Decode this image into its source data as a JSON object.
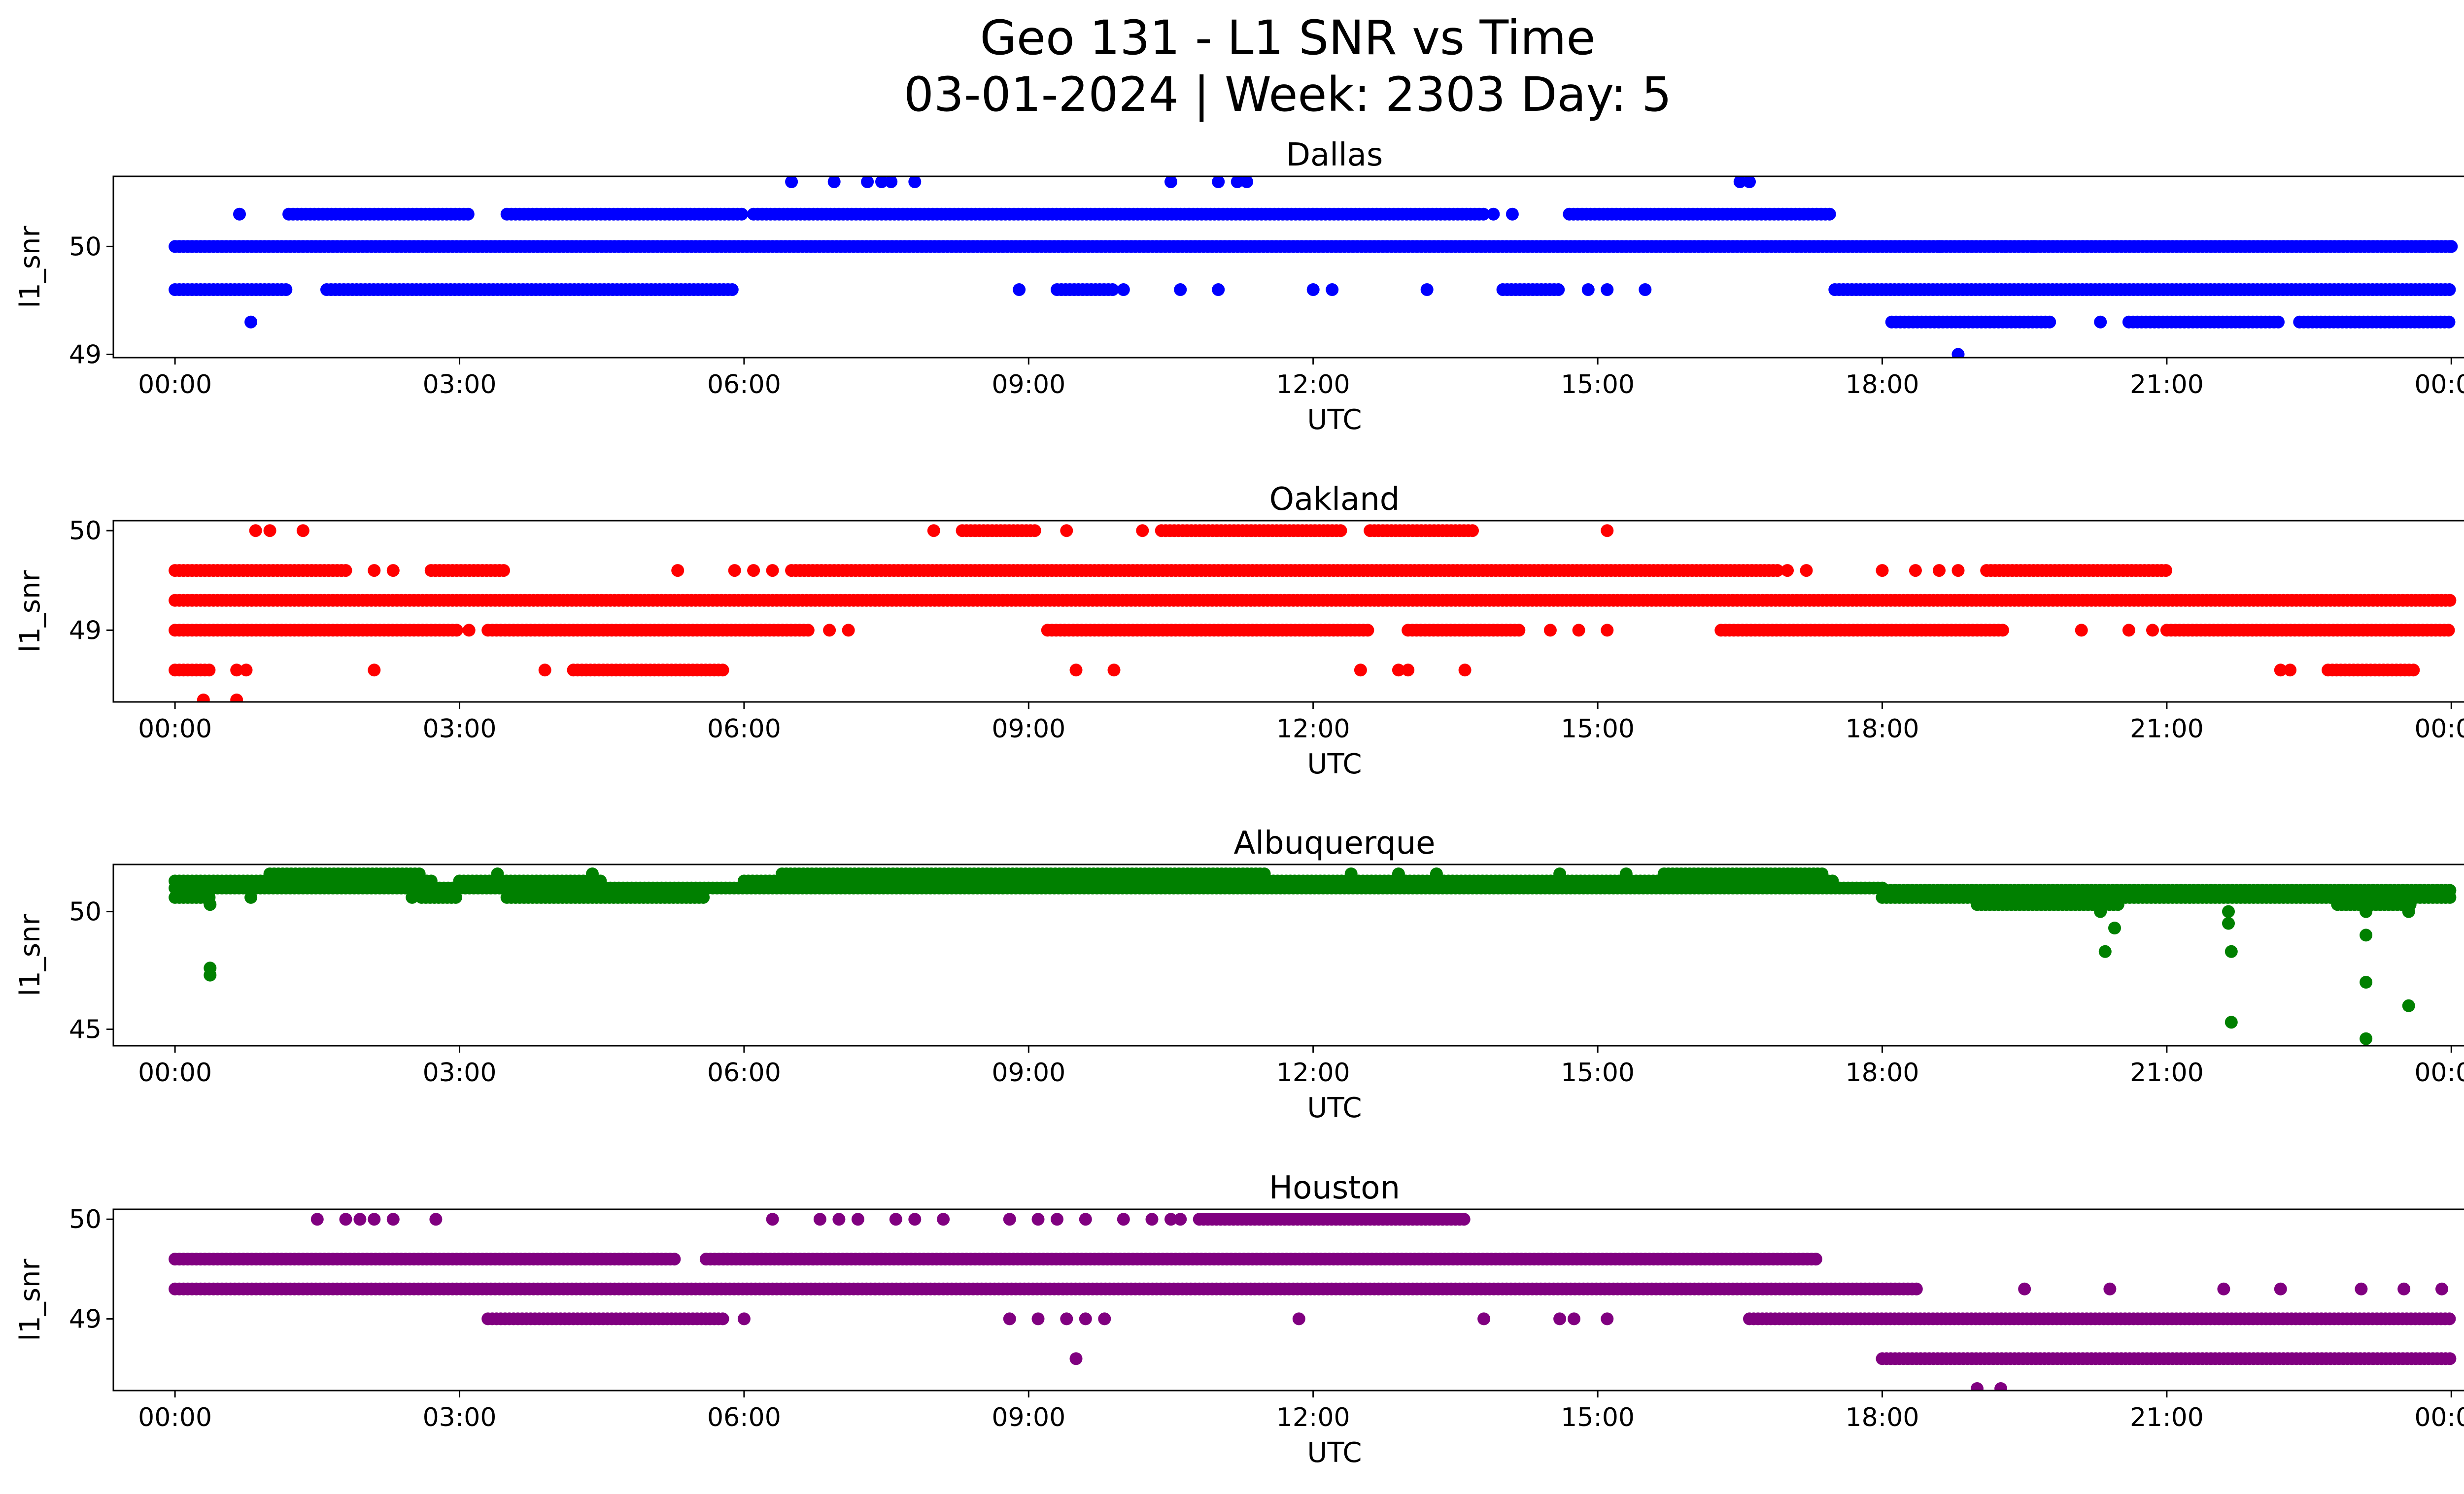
{
  "figure": {
    "title_line1": "Geo 131 - L1 SNR vs Time",
    "title_line2": "03-01-2024 | Week: 2303 Day: 5"
  },
  "chart_data": [
    {
      "type": "scatter",
      "title": "Dallas",
      "xlabel": "UTC",
      "ylabel": "l1_snr",
      "color": "#0000ff",
      "xticks": [
        "00:00",
        "03:00",
        "06:00",
        "09:00",
        "12:00",
        "15:00",
        "18:00",
        "21:00",
        "00:00"
      ],
      "xlim": [
        -0.65,
        25.1
      ],
      "yticks": [
        49,
        50
      ],
      "ylim": [
        48.97,
        50.65
      ],
      "levels": [
        {
          "y": 50.0,
          "runs": [
            [
              0.0,
              24.0
            ]
          ]
        },
        {
          "y": 50.3,
          "runs": [
            [
              1.2,
              3.1
            ],
            [
              3.5,
              6.0
            ],
            [
              6.1,
              13.8
            ],
            [
              14.7,
              17.45
            ]
          ]
        },
        {
          "y": 49.6,
          "runs": [
            [
              0.0,
              1.2
            ],
            [
              1.6,
              5.9
            ],
            [
              9.3,
              9.9
            ],
            [
              14.0,
              14.6
            ],
            [
              17.5,
              24.0
            ]
          ]
        },
        {
          "y": 49.3,
          "runs": [
            [
              18.1,
              19.8
            ],
            [
              20.6,
              22.2
            ],
            [
              22.4,
              24.0
            ]
          ]
        }
      ],
      "points": [
        [
          0.68,
          50.3
        ],
        [
          0.8,
          49.3
        ],
        [
          6.5,
          50.6
        ],
        [
          6.95,
          50.6
        ],
        [
          7.3,
          50.6
        ],
        [
          7.45,
          50.6
        ],
        [
          7.55,
          50.6
        ],
        [
          7.8,
          50.6
        ],
        [
          10.5,
          50.6
        ],
        [
          11.0,
          50.6
        ],
        [
          11.2,
          50.6
        ],
        [
          11.3,
          50.6
        ],
        [
          16.5,
          50.6
        ],
        [
          16.6,
          50.6
        ],
        [
          8.9,
          49.6
        ],
        [
          10.0,
          49.6
        ],
        [
          10.6,
          49.6
        ],
        [
          11.0,
          49.6
        ],
        [
          12.0,
          49.6
        ],
        [
          12.2,
          49.6
        ],
        [
          13.2,
          49.6
        ],
        [
          14.9,
          49.6
        ],
        [
          15.1,
          49.6
        ],
        [
          15.5,
          49.6
        ],
        [
          13.9,
          50.3
        ],
        [
          14.1,
          50.3
        ],
        [
          18.8,
          49.0
        ],
        [
          18.6,
          50.0
        ],
        [
          18.9,
          50.0
        ],
        [
          19.3,
          50.0
        ],
        [
          19.6,
          50.0
        ],
        [
          20.3,
          49.3
        ],
        [
          23.7,
          50.0
        ],
        [
          24.0,
          50.0
        ]
      ]
    },
    {
      "type": "scatter",
      "title": "Oakland",
      "xlabel": "UTC",
      "ylabel": "l1_snr",
      "color": "#ff0000",
      "xticks": [
        "00:00",
        "03:00",
        "06:00",
        "09:00",
        "12:00",
        "15:00",
        "18:00",
        "21:00",
        "00:00"
      ],
      "xlim": [
        -0.65,
        25.1
      ],
      "yticks": [
        49,
        50
      ],
      "ylim": [
        48.28,
        50.1
      ],
      "levels": [
        {
          "y": 49.3,
          "runs": [
            [
              0.0,
              24.0
            ]
          ]
        },
        {
          "y": 49.0,
          "runs": [
            [
              0.0,
              3.0
            ],
            [
              3.3,
              6.7
            ],
            [
              9.2,
              12.6
            ],
            [
              13.0,
              14.2
            ],
            [
              16.3,
              19.3
            ],
            [
              21.0,
              24.0
            ]
          ]
        },
        {
          "y": 49.6,
          "runs": [
            [
              0.0,
              1.8
            ],
            [
              2.7,
              3.5
            ],
            [
              6.5,
              16.9
            ],
            [
              19.1,
              21.0
            ]
          ]
        },
        {
          "y": 48.6,
          "runs": [
            [
              0.0,
              0.4
            ],
            [
              4.2,
              5.8
            ],
            [
              22.7,
              23.6
            ]
          ]
        },
        {
          "y": 50.0,
          "runs": [
            [
              8.3,
              9.1
            ],
            [
              10.4,
              12.3
            ],
            [
              12.6,
              13.7
            ]
          ]
        }
      ],
      "points": [
        [
          0.85,
          50.0
        ],
        [
          1.0,
          50.0
        ],
        [
          1.35,
          50.0
        ],
        [
          8.0,
          50.0
        ],
        [
          9.4,
          50.0
        ],
        [
          10.2,
          50.0
        ],
        [
          15.1,
          50.0
        ],
        [
          0.3,
          48.3
        ],
        [
          0.65,
          48.3
        ],
        [
          0.65,
          48.6
        ],
        [
          0.75,
          48.6
        ],
        [
          2.1,
          48.6
        ],
        [
          3.9,
          48.6
        ],
        [
          9.5,
          48.6
        ],
        [
          9.9,
          48.6
        ],
        [
          12.5,
          48.6
        ],
        [
          12.9,
          48.6
        ],
        [
          13.0,
          48.6
        ],
        [
          13.6,
          48.6
        ],
        [
          22.2,
          48.6
        ],
        [
          22.3,
          48.6
        ],
        [
          3.1,
          49.0
        ],
        [
          6.9,
          49.0
        ],
        [
          7.1,
          49.0
        ],
        [
          14.5,
          49.0
        ],
        [
          14.8,
          49.0
        ],
        [
          15.1,
          49.0
        ],
        [
          20.1,
          49.0
        ],
        [
          20.6,
          49.0
        ],
        [
          20.85,
          49.0
        ],
        [
          2.1,
          49.6
        ],
        [
          2.3,
          49.6
        ],
        [
          5.3,
          49.6
        ],
        [
          5.9,
          49.6
        ],
        [
          6.1,
          49.6
        ],
        [
          6.3,
          49.6
        ],
        [
          17.0,
          49.6
        ],
        [
          17.2,
          49.6
        ],
        [
          18.0,
          49.6
        ],
        [
          18.35,
          49.6
        ],
        [
          18.6,
          49.6
        ],
        [
          18.8,
          49.6
        ]
      ]
    },
    {
      "type": "scatter",
      "title": "Albuquerque",
      "xlabel": "UTC",
      "ylabel": "l1_snr",
      "color": "#008000",
      "xticks": [
        "00:00",
        "03:00",
        "06:00",
        "09:00",
        "12:00",
        "15:00",
        "18:00",
        "21:00",
        "00:00"
      ],
      "xlim": [
        -0.65,
        25.1
      ],
      "yticks": [
        45,
        50
      ],
      "ylim": [
        44.3,
        52.0
      ],
      "levels": [
        {
          "y": 51.0,
          "runs": [
            [
              0.0,
              18.0
            ]
          ]
        },
        {
          "y": 51.3,
          "runs": [
            [
              0.0,
              2.7
            ],
            [
              3.0,
              4.5
            ],
            [
              6.0,
              17.5
            ]
          ]
        },
        {
          "y": 50.6,
          "runs": [
            [
              0.0,
              0.4
            ],
            [
              2.6,
              3.0
            ],
            [
              3.5,
              5.6
            ],
            [
              18.0,
              24.0
            ]
          ]
        },
        {
          "y": 51.6,
          "runs": [
            [
              1.0,
              2.6
            ],
            [
              6.4,
              11.5
            ],
            [
              15.7,
              17.4
            ]
          ]
        },
        {
          "y": 50.9,
          "runs": [
            [
              18.0,
              24.0
            ]
          ]
        },
        {
          "y": 50.3,
          "runs": [
            [
              19.0,
              20.5
            ],
            [
              22.8,
              23.6
            ]
          ]
        }
      ],
      "points": [
        [
          0.37,
          50.3
        ],
        [
          0.37,
          47.6
        ],
        [
          0.37,
          47.3
        ],
        [
          0.8,
          50.6
        ],
        [
          2.5,
          50.6
        ],
        [
          20.3,
          50.0
        ],
        [
          20.35,
          48.3
        ],
        [
          20.45,
          49.3
        ],
        [
          21.65,
          50.0
        ],
        [
          21.65,
          49.5
        ],
        [
          21.68,
          48.3
        ],
        [
          21.68,
          45.3
        ],
        [
          23.1,
          50.0
        ],
        [
          23.1,
          49.0
        ],
        [
          23.1,
          47.0
        ],
        [
          23.1,
          44.6
        ],
        [
          23.55,
          50.0
        ],
        [
          23.55,
          46.0
        ],
        [
          3.4,
          51.6
        ],
        [
          4.4,
          51.6
        ],
        [
          12.4,
          51.6
        ],
        [
          12.9,
          51.6
        ],
        [
          13.3,
          51.6
        ],
        [
          14.6,
          51.6
        ],
        [
          15.3,
          51.6
        ]
      ]
    },
    {
      "type": "scatter",
      "title": "Houston",
      "xlabel": "UTC",
      "ylabel": "l1_snr",
      "color": "#800080",
      "xticks": [
        "00:00",
        "03:00",
        "06:00",
        "09:00",
        "12:00",
        "15:00",
        "18:00",
        "21:00",
        "00:00"
      ],
      "xlim": [
        -0.65,
        25.1
      ],
      "yticks": [
        49,
        50
      ],
      "ylim": [
        48.28,
        50.1
      ],
      "levels": [
        {
          "y": 49.3,
          "runs": [
            [
              0.0,
              18.4
            ]
          ]
        },
        {
          "y": 49.6,
          "runs": [
            [
              0.0,
              5.3
            ],
            [
              5.6,
              17.3
            ]
          ]
        },
        {
          "y": 49.0,
          "runs": [
            [
              3.3,
              5.8
            ],
            [
              16.6,
              24.0
            ]
          ]
        },
        {
          "y": 48.6,
          "runs": [
            [
              18.0,
              24.0
            ]
          ]
        },
        {
          "y": 50.0,
          "runs": [
            [
              10.8,
              13.6
            ]
          ]
        }
      ],
      "points": [
        [
          1.5,
          50.0
        ],
        [
          1.8,
          50.0
        ],
        [
          1.95,
          50.0
        ],
        [
          2.1,
          50.0
        ],
        [
          2.3,
          50.0
        ],
        [
          2.75,
          50.0
        ],
        [
          6.3,
          50.0
        ],
        [
          6.8,
          50.0
        ],
        [
          7.0,
          50.0
        ],
        [
          7.2,
          50.0
        ],
        [
          7.6,
          50.0
        ],
        [
          7.8,
          50.0
        ],
        [
          8.1,
          50.0
        ],
        [
          8.8,
          50.0
        ],
        [
          9.1,
          50.0
        ],
        [
          9.3,
          50.0
        ],
        [
          9.6,
          50.0
        ],
        [
          10.0,
          50.0
        ],
        [
          10.3,
          50.0
        ],
        [
          10.5,
          50.0
        ],
        [
          10.6,
          50.0
        ],
        [
          8.8,
          49.0
        ],
        [
          9.1,
          49.0
        ],
        [
          9.4,
          49.0
        ],
        [
          9.6,
          49.0
        ],
        [
          9.8,
          49.0
        ],
        [
          11.85,
          49.0
        ],
        [
          13.8,
          49.0
        ],
        [
          14.6,
          49.0
        ],
        [
          14.75,
          49.0
        ],
        [
          15.1,
          49.0
        ],
        [
          6.0,
          49.0
        ],
        [
          9.5,
          48.6
        ],
        [
          19.0,
          48.3
        ],
        [
          19.25,
          48.3
        ],
        [
          19.5,
          49.3
        ],
        [
          20.4,
          49.3
        ],
        [
          21.6,
          49.3
        ],
        [
          22.2,
          49.3
        ],
        [
          23.05,
          49.3
        ],
        [
          23.5,
          49.3
        ],
        [
          23.9,
          49.3
        ]
      ]
    }
  ]
}
